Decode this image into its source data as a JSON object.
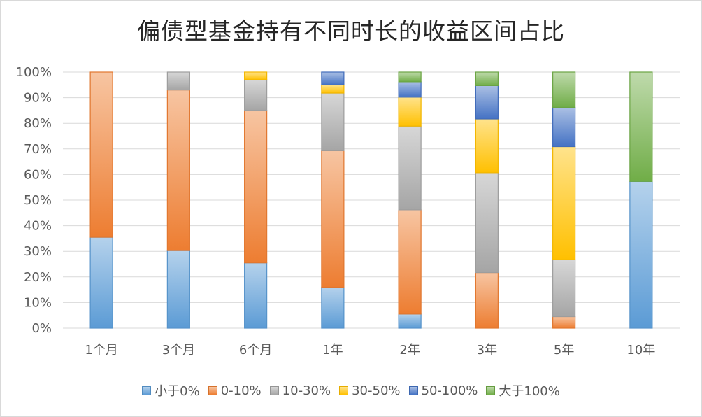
{
  "chart_data": {
    "type": "bar",
    "stacked": true,
    "title": "偏债型基金持有不同时长的收益区间占比",
    "categories": [
      "1个月",
      "3个月",
      "6个月",
      "1年",
      "2年",
      "3年",
      "5年",
      "10年"
    ],
    "ylim": [
      0,
      100
    ],
    "ytick_labels": [
      "0%",
      "10%",
      "20%",
      "30%",
      "40%",
      "50%",
      "60%",
      "70%",
      "80%",
      "90%",
      "100%"
    ],
    "grid": true,
    "legend_position": "bottom",
    "series": [
      {
        "name": "小于0%",
        "color": "#5B9BD5",
        "values": [
          35.5,
          30.3,
          25.5,
          16.0,
          5.5,
          0,
          0,
          57.3
        ]
      },
      {
        "name": "0-10%",
        "color": "#ED7D31",
        "values": [
          64.5,
          62.7,
          59.5,
          53.3,
          40.7,
          21.7,
          4.5,
          0
        ]
      },
      {
        "name": "10-30%",
        "color": "#A5A5A5",
        "values": [
          0,
          7.0,
          12.0,
          22.5,
          32.7,
          39.0,
          22.2,
          0
        ]
      },
      {
        "name": "30-50%",
        "color": "#FFC000",
        "values": [
          0,
          0,
          3.0,
          3.2,
          11.3,
          21.0,
          44.2,
          0
        ]
      },
      {
        "name": "50-100%",
        "color": "#4472C4",
        "values": [
          0,
          0,
          0,
          5.0,
          6.0,
          13.0,
          15.3,
          0
        ]
      },
      {
        "name": "大于100%",
        "color": "#70AD47",
        "values": [
          0,
          0,
          0,
          0,
          3.8,
          5.3,
          13.8,
          42.7
        ]
      }
    ]
  }
}
